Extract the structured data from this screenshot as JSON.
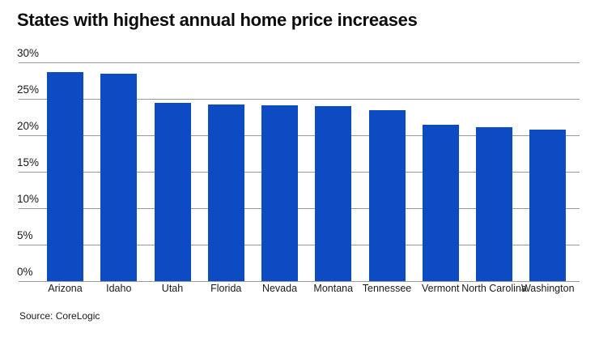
{
  "chart_data": {
    "type": "bar",
    "title": "States with highest annual home price increases",
    "categories": [
      "Arizona",
      "Idaho",
      "Utah",
      "Florida",
      "Nevada",
      "Montana",
      "Tennessee",
      "Vermont",
      "North Carolina",
      "Washington"
    ],
    "values": [
      28.7,
      28.5,
      24.4,
      24.2,
      24.1,
      24.0,
      23.4,
      21.5,
      21.1,
      20.8
    ],
    "unit": "%",
    "ylim": [
      0,
      30
    ],
    "ytick_step": 5,
    "ytick_labels": [
      "0%",
      "5%",
      "10%",
      "15%",
      "20%",
      "25%",
      "30%"
    ],
    "grid": true,
    "legend": "none",
    "source": "Source: CoreLogic",
    "colors": {
      "bar": "#0c4bc2",
      "gridline": "#9a9a9a",
      "text": "#1a1a1a",
      "title": "#0d0d0d",
      "background": "#ffffff"
    }
  }
}
